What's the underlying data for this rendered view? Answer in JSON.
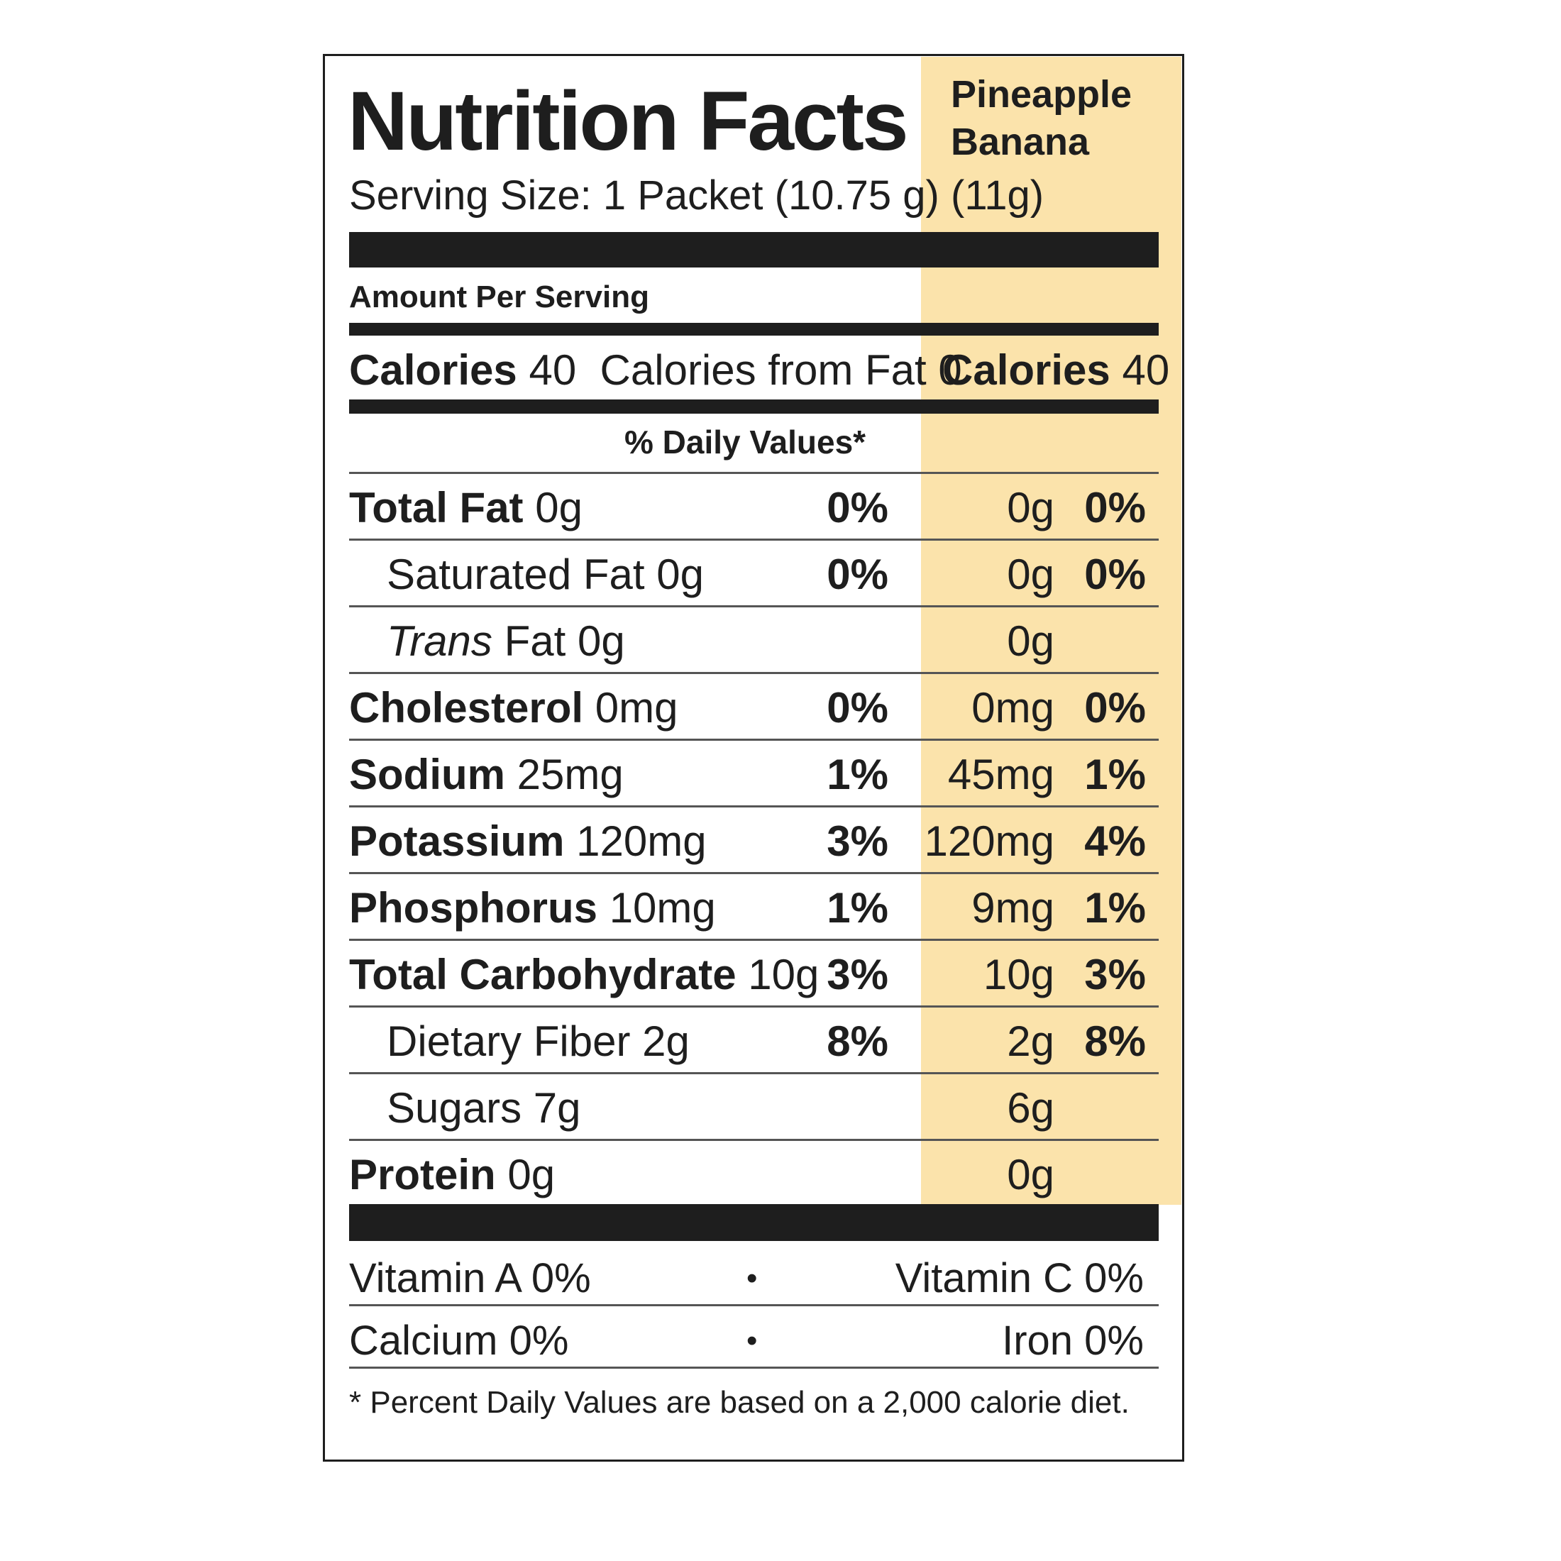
{
  "header": {
    "title": "Nutrition Facts",
    "serving_size": "Serving Size: 1 Packet  (10.75 g)",
    "flavor_line1": "Pineapple",
    "flavor_line2": "Banana",
    "flavor_serving": "(11g)"
  },
  "amount_per_serving": "Amount Per Serving",
  "calories": {
    "label": "Calories",
    "value": "40",
    "from_fat": "Calories from Fat 0",
    "flavor_label": "Calories",
    "flavor_value": "40"
  },
  "daily_values_header": "% Daily Values*",
  "nutrients": [
    {
      "name": "Total Fat",
      "amount": "0g",
      "dv": "0%",
      "flavor_amount": "0g",
      "flavor_dv": "0%",
      "bold": true,
      "indent": false
    },
    {
      "name": "Saturated Fat",
      "amount": "0g",
      "dv": "0%",
      "flavor_amount": "0g",
      "flavor_dv": "0%",
      "bold": false,
      "indent": true
    },
    {
      "name": "Trans",
      "name_suffix": "Fat",
      "amount": "0g",
      "dv": "",
      "flavor_amount": "0g",
      "flavor_dv": "",
      "bold": false,
      "indent": true,
      "italic": true
    },
    {
      "name": "Cholesterol",
      "amount": "0mg",
      "dv": "0%",
      "flavor_amount": "0mg",
      "flavor_dv": "0%",
      "bold": true,
      "indent": false
    },
    {
      "name": "Sodium",
      "amount": "25mg",
      "dv": "1%",
      "flavor_amount": "45mg",
      "flavor_dv": "1%",
      "bold": true,
      "indent": false
    },
    {
      "name": "Potassium",
      "amount": "120mg",
      "dv": "3%",
      "flavor_amount": "120mg",
      "flavor_dv": "4%",
      "bold": true,
      "indent": false
    },
    {
      "name": "Phosphorus",
      "amount": "10mg",
      "dv": "1%",
      "flavor_amount": "9mg",
      "flavor_dv": "1%",
      "bold": true,
      "indent": false
    },
    {
      "name": "Total Carbohydrate",
      "amount": "10g",
      "dv": "3%",
      "flavor_amount": "10g",
      "flavor_dv": "3%",
      "bold": true,
      "indent": false
    },
    {
      "name": "Dietary Fiber",
      "amount": "2g",
      "dv": "8%",
      "flavor_amount": "2g",
      "flavor_dv": "8%",
      "bold": false,
      "indent": true
    },
    {
      "name": "Sugars",
      "amount": "7g",
      "dv": "",
      "flavor_amount": "6g",
      "flavor_dv": "",
      "bold": false,
      "indent": true
    },
    {
      "name": "Protein",
      "amount": "0g",
      "dv": "",
      "flavor_amount": "0g",
      "flavor_dv": "",
      "bold": true,
      "indent": false
    }
  ],
  "vitamins": {
    "vitamin_a": "Vitamin A  0%",
    "vitamin_c": "Vitamin C  0%",
    "calcium": "Calcium  0%",
    "iron": "Iron  0%",
    "bullet": "•"
  },
  "footnote": "* Percent Daily Values are based on a 2,000 calorie diet."
}
